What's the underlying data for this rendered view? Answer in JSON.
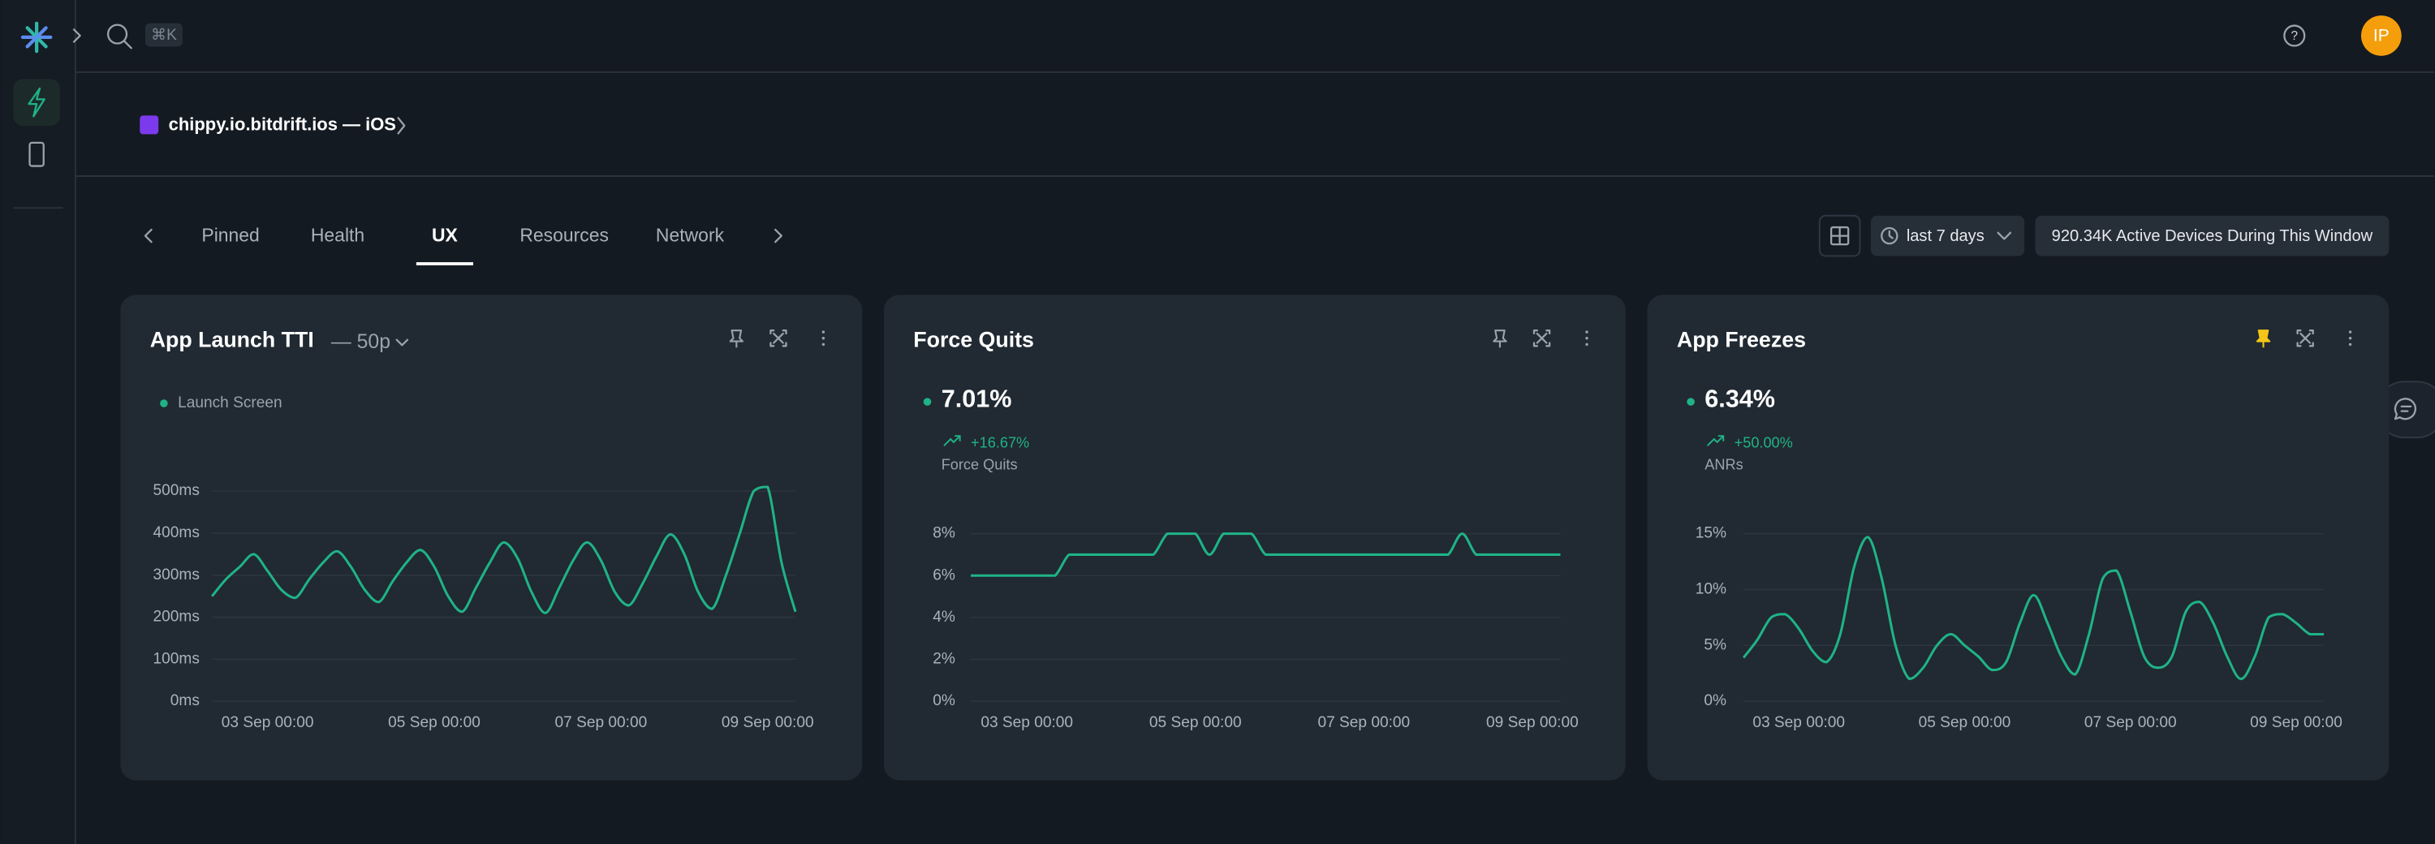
{
  "topbar": {
    "search_shortcut": "⌘K",
    "avatar": "IP"
  },
  "app": {
    "name": "chippy.io.bitdrift.ios — iOS"
  },
  "tabs": [
    {
      "label": "Pinned"
    },
    {
      "label": "Health"
    },
    {
      "label": "UX",
      "active": true
    },
    {
      "label": "Resources"
    },
    {
      "label": "Network"
    }
  ],
  "toolbar": {
    "time_range": "last 7 days",
    "active_devices": "920.34K Active Devices During This Window"
  },
  "chart_data": [
    {
      "type": "line",
      "title": "App Launch TTI",
      "title_suffix": "— 50p",
      "x": [
        "02 Sep 08:00",
        "02 Sep 12:00",
        "02 Sep 16:00",
        "02 Sep 20:00",
        "03 Sep 00:00",
        "03 Sep 04:00",
        "03 Sep 08:00",
        "03 Sep 12:00",
        "03 Sep 16:00",
        "03 Sep 20:00",
        "04 Sep 00:00",
        "04 Sep 04:00",
        "04 Sep 08:00",
        "04 Sep 12:00",
        "04 Sep 16:00",
        "04 Sep 20:00",
        "05 Sep 00:00",
        "05 Sep 04:00",
        "05 Sep 08:00",
        "05 Sep 12:00",
        "05 Sep 16:00",
        "05 Sep 20:00",
        "06 Sep 00:00",
        "06 Sep 04:00",
        "06 Sep 08:00",
        "06 Sep 12:00",
        "06 Sep 16:00",
        "06 Sep 20:00",
        "07 Sep 00:00",
        "07 Sep 04:00",
        "07 Sep 08:00",
        "07 Sep 12:00",
        "07 Sep 16:00",
        "07 Sep 20:00",
        "08 Sep 00:00",
        "08 Sep 04:00",
        "08 Sep 08:00",
        "08 Sep 12:00",
        "08 Sep 16:00",
        "08 Sep 20:00",
        "09 Sep 00:00",
        "09 Sep 04:00",
        "09 Sep 08:00"
      ],
      "xticks": [
        "03 Sep 00:00",
        "05 Sep 00:00",
        "07 Sep 00:00",
        "09 Sep 00:00"
      ],
      "ylim": [
        0,
        550
      ],
      "yticks": [
        {
          "value": 0,
          "label": "0ms"
        },
        {
          "value": 100,
          "label": "100ms"
        },
        {
          "value": 200,
          "label": "200ms"
        },
        {
          "value": 300,
          "label": "300ms"
        },
        {
          "value": 400,
          "label": "400ms"
        },
        {
          "value": 500,
          "label": "500ms"
        }
      ],
      "grid": true,
      "series": [
        {
          "name": "Launch Screen",
          "color": "#1fb386",
          "values": [
            250,
            290,
            320,
            350,
            310,
            265,
            246,
            290,
            330,
            357,
            320,
            265,
            236,
            285,
            330,
            360,
            320,
            250,
            213,
            270,
            330,
            378,
            340,
            260,
            210,
            270,
            335,
            378,
            335,
            260,
            228,
            280,
            345,
            397,
            350,
            260,
            220,
            300,
            400,
            500,
            510,
            330,
            213
          ]
        }
      ]
    },
    {
      "type": "line",
      "title": "Force Quits",
      "summary": {
        "value": "7.01%",
        "change": "+16.67%"
      },
      "x": [
        "02 Sep 08:00",
        "02 Sep 12:00",
        "02 Sep 16:00",
        "02 Sep 20:00",
        "03 Sep 00:00",
        "03 Sep 04:00",
        "03 Sep 08:00",
        "03 Sep 12:00",
        "03 Sep 16:00",
        "03 Sep 20:00",
        "04 Sep 00:00",
        "04 Sep 04:00",
        "04 Sep 08:00",
        "04 Sep 12:00",
        "04 Sep 16:00",
        "04 Sep 20:00",
        "05 Sep 00:00",
        "05 Sep 04:00",
        "05 Sep 08:00",
        "05 Sep 12:00",
        "05 Sep 16:00",
        "05 Sep 20:00",
        "06 Sep 00:00",
        "06 Sep 04:00",
        "06 Sep 08:00",
        "06 Sep 12:00",
        "06 Sep 16:00",
        "06 Sep 20:00",
        "07 Sep 00:00",
        "07 Sep 04:00",
        "07 Sep 08:00",
        "07 Sep 12:00",
        "07 Sep 16:00",
        "07 Sep 20:00",
        "08 Sep 00:00",
        "08 Sep 04:00",
        "08 Sep 08:00",
        "08 Sep 12:00",
        "08 Sep 16:00",
        "08 Sep 20:00",
        "09 Sep 00:00",
        "09 Sep 04:00",
        "09 Sep 08:00"
      ],
      "xticks": [
        "03 Sep 00:00",
        "05 Sep 00:00",
        "07 Sep 00:00",
        "09 Sep 00:00"
      ],
      "ylim": [
        0,
        8
      ],
      "yticks": [
        {
          "value": 0,
          "label": "0%"
        },
        {
          "value": 2,
          "label": "2%"
        },
        {
          "value": 4,
          "label": "4%"
        },
        {
          "value": 6,
          "label": "6%"
        },
        {
          "value": 8,
          "label": "8%"
        }
      ],
      "grid": true,
      "series": [
        {
          "name": "Force Quits",
          "color": "#1fb386",
          "values": [
            6,
            6,
            6,
            6,
            6,
            6,
            6,
            7,
            7,
            7,
            7,
            7,
            7,
            7,
            8,
            8,
            8,
            7,
            8,
            8,
            8,
            7,
            7,
            7,
            7,
            7,
            7,
            7,
            7,
            7,
            7,
            7,
            7,
            7,
            7,
            8,
            7,
            7,
            7,
            7,
            7,
            7,
            7
          ]
        }
      ]
    },
    {
      "type": "line",
      "title": "App Freezes",
      "pinned": true,
      "summary": {
        "value": "6.34%",
        "change": "+50.00%"
      },
      "x": [
        "02 Sep 08:00",
        "02 Sep 12:00",
        "02 Sep 16:00",
        "02 Sep 20:00",
        "03 Sep 00:00",
        "03 Sep 04:00",
        "03 Sep 08:00",
        "03 Sep 12:00",
        "03 Sep 16:00",
        "03 Sep 20:00",
        "04 Sep 00:00",
        "04 Sep 04:00",
        "04 Sep 08:00",
        "04 Sep 12:00",
        "04 Sep 16:00",
        "04 Sep 20:00",
        "05 Sep 00:00",
        "05 Sep 04:00",
        "05 Sep 08:00",
        "05 Sep 12:00",
        "05 Sep 16:00",
        "05 Sep 20:00",
        "06 Sep 00:00",
        "06 Sep 04:00",
        "06 Sep 08:00",
        "06 Sep 12:00",
        "06 Sep 16:00",
        "06 Sep 20:00",
        "07 Sep 00:00",
        "07 Sep 04:00",
        "07 Sep 08:00",
        "07 Sep 12:00",
        "07 Sep 16:00",
        "07 Sep 20:00",
        "08 Sep 00:00",
        "08 Sep 04:00",
        "08 Sep 08:00",
        "08 Sep 12:00",
        "08 Sep 16:00",
        "08 Sep 20:00",
        "09 Sep 00:00",
        "09 Sep 04:00",
        "09 Sep 08:00"
      ],
      "xticks": [
        "03 Sep 00:00",
        "05 Sep 00:00",
        "07 Sep 00:00",
        "09 Sep 00:00"
      ],
      "ylim": [
        0,
        15
      ],
      "yticks": [
        {
          "value": 0,
          "label": "0%"
        },
        {
          "value": 5,
          "label": "5%"
        },
        {
          "value": 10,
          "label": "10%"
        },
        {
          "value": 15,
          "label": "15%"
        }
      ],
      "grid": true,
      "series": [
        {
          "name": "ANRs",
          "color": "#1fb386",
          "values": [
            3.9,
            5.5,
            7.5,
            7.8,
            6.5,
            4.5,
            3.5,
            6,
            12,
            14.7,
            11,
            5,
            2,
            3,
            5,
            6,
            5,
            4,
            2.8,
            3.5,
            7,
            9.5,
            7,
            4,
            2.4,
            6,
            11,
            11.7,
            8,
            4,
            3,
            4,
            8,
            8.9,
            7,
            4,
            2,
            4,
            7.5,
            7.8,
            7,
            6,
            6
          ]
        }
      ]
    }
  ]
}
